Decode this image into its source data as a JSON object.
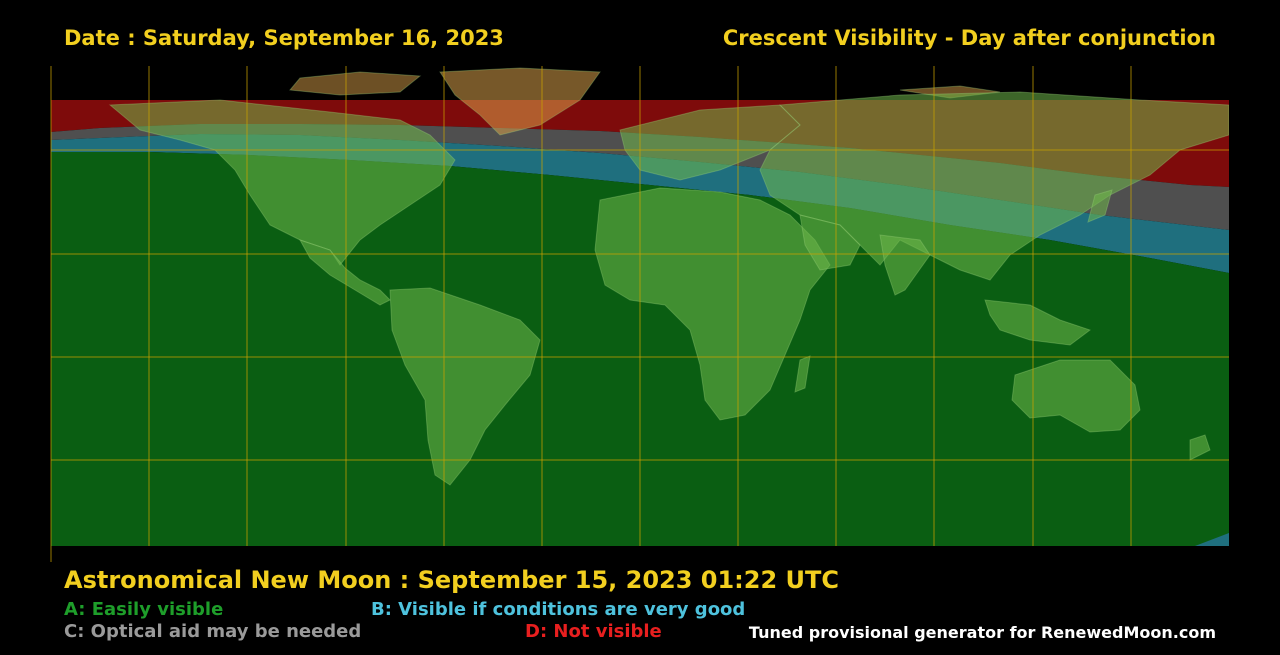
{
  "header": {
    "date": "Date : Saturday, September 16, 2023",
    "subtitle": "Crescent Visibility - Day after conjunction"
  },
  "new_moon": "Astronomical New Moon : September 15, 2023 01:22 UTC",
  "legend": {
    "a": "A: Easily visible",
    "b": "B: Visible if conditions are very good",
    "c": "C: Optical aid may be needed",
    "d": "D: Not visible"
  },
  "credit": "Tuned provisional generator for RenewedMoon.com",
  "colors": {
    "zone_a": "#0a5e12",
    "zone_b": "#1f6f7e",
    "zone_c": "#4f4f4f",
    "zone_d": "#7e0b0b",
    "land_tint": "#6fb84a",
    "grid": "#c8a000",
    "title_text": "#f2cf1f",
    "legend_a": "#1e9e2a",
    "legend_b": "#4ec2dd",
    "legend_c": "#9a9a9a",
    "legend_d": "#e81f1f"
  },
  "map": {
    "projection": "equirectangular",
    "grid_spacing_deg": 30,
    "visible_lat_range": [
      -90,
      90
    ]
  }
}
